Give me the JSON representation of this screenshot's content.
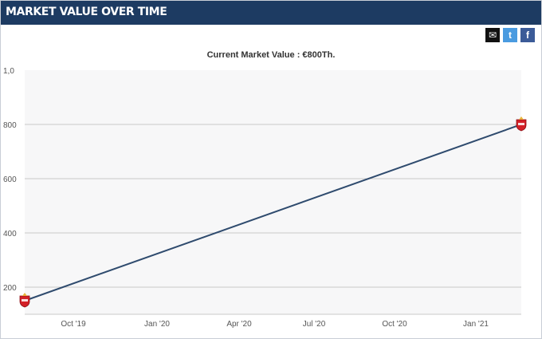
{
  "header": {
    "title": "MARKET VALUE OVER TIME"
  },
  "share": {
    "email_glyph": "✉",
    "twitter_glyph": "t",
    "facebook_glyph": "f"
  },
  "colors": {
    "header_bg": "#1d3b62",
    "plot_bg": "#f7f7f8",
    "line": "#2f4b6e",
    "grid": "#c8c8c8",
    "marker": "#d32027"
  },
  "chart_data": {
    "type": "line",
    "title": "Current Market Value : €800Th.",
    "xlabel": "",
    "ylabel": "",
    "x_ticks": [
      "Oct '19",
      "Jan '20",
      "Apr '20",
      "Jul '20",
      "Oct '20",
      "Jan '21"
    ],
    "y_ticks": [
      "200",
      "400",
      "600",
      "800",
      "1,0"
    ],
    "ylim": [
      100,
      1000
    ],
    "grid": true,
    "series": [
      {
        "points": [
          {
            "x": "2019-08-20",
            "y": 150
          },
          {
            "x": "2021-03-15",
            "y": 800
          }
        ]
      }
    ]
  }
}
